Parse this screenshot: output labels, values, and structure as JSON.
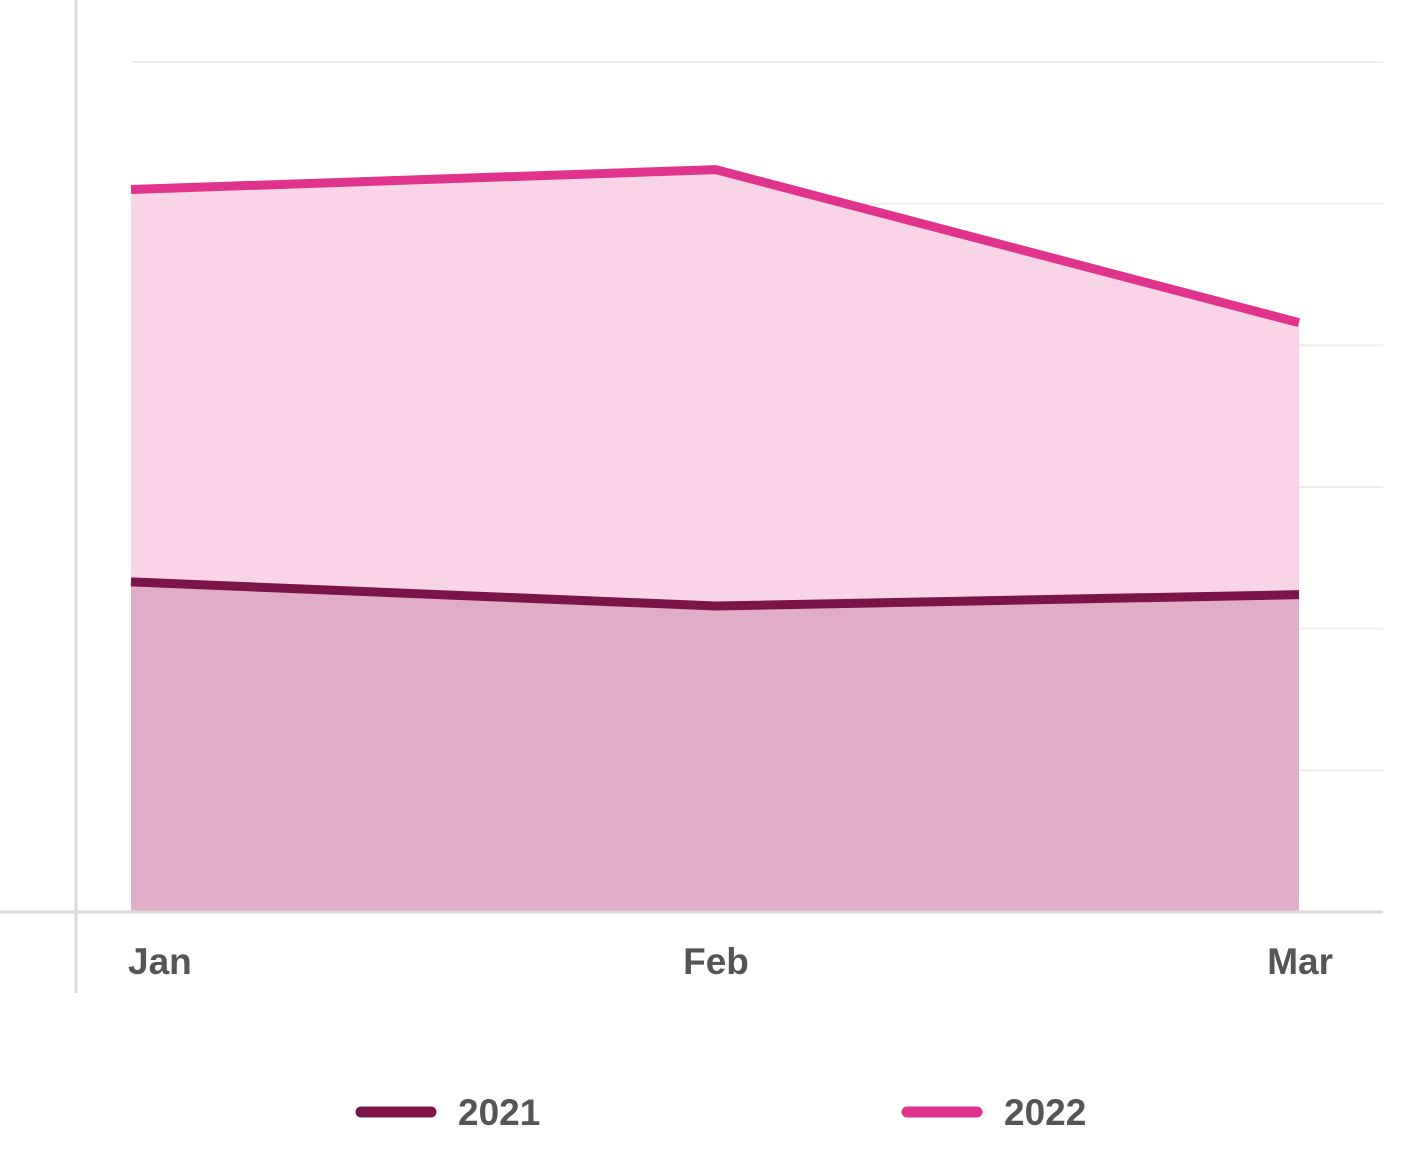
{
  "chart_data": {
    "type": "area",
    "categories": [
      "Jan",
      "Feb",
      "Mar"
    ],
    "series": [
      {
        "name": "2021",
        "values": [
          233,
          216,
          224
        ],
        "line_color": "#7b1448",
        "fill_color": "#e0adc8"
      },
      {
        "name": "2022",
        "values": [
          510,
          524,
          416
        ],
        "line_color": "#e0338e",
        "fill_color": "#f9d4e8"
      }
    ],
    "ylim": [
      0,
      600
    ],
    "y_gridlines": [
      100,
      200,
      300,
      400,
      500,
      600
    ],
    "grid": true,
    "y_tick_labels_visible": false,
    "legend_position": "bottom",
    "axis_color": "#d9d9d9",
    "grid_color": "#eeeeee",
    "text_color": "#555555"
  }
}
